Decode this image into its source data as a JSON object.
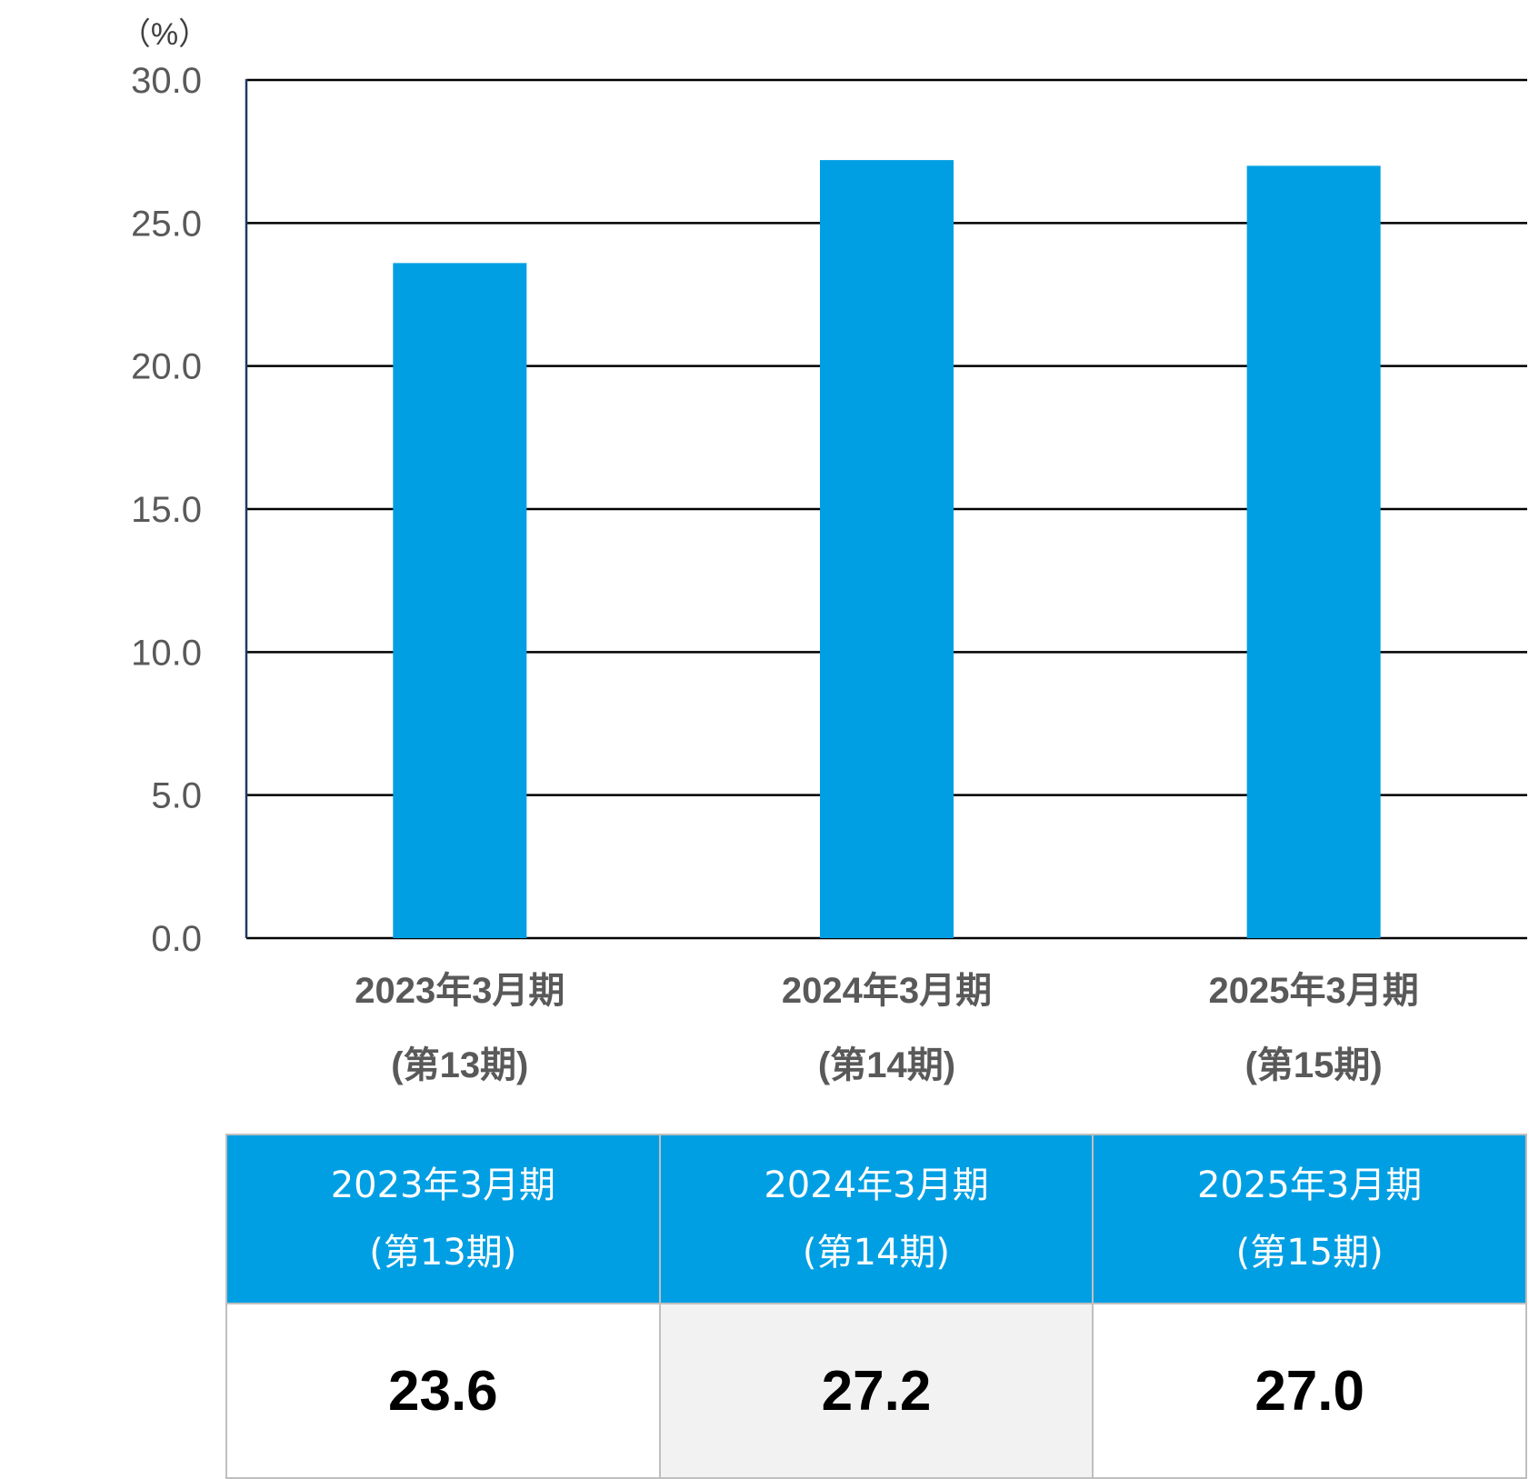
{
  "chart_data": {
    "type": "bar",
    "unit_label": "（%）",
    "categories": [
      [
        "2023年3月期",
        "(第13期)"
      ],
      [
        "2024年3月期",
        "(第14期)"
      ],
      [
        "2025年3月期",
        "(第15期)"
      ]
    ],
    "values": [
      23.6,
      27.2,
      27.0
    ],
    "ylim": [
      0,
      30
    ],
    "yticks": [
      "0.0",
      "5.0",
      "10.0",
      "15.0",
      "20.0",
      "25.0",
      "30.0"
    ],
    "grid": true,
    "bar_color": "#009fe3"
  },
  "table": {
    "headers": [
      [
        "2023年3月期",
        "(第13期)"
      ],
      [
        "2024年3月期",
        "(第14期)"
      ],
      [
        "2025年3月期",
        "(第15期)"
      ]
    ],
    "values": [
      "23.6",
      "27.2",
      "27.0"
    ],
    "header_color": "#009fe3",
    "highlight_cell_color": "#f2f2f2"
  }
}
